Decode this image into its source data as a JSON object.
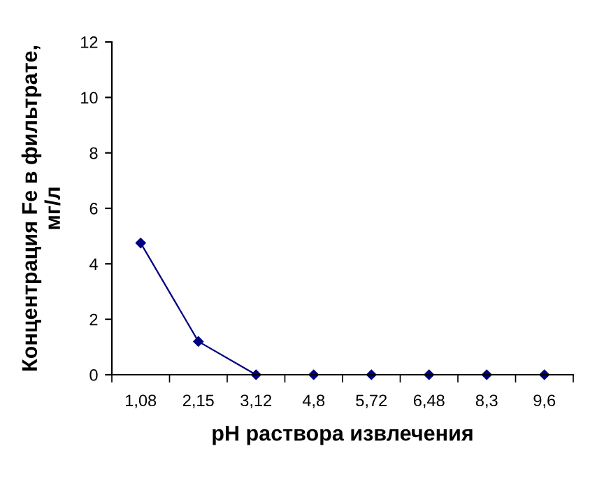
{
  "chart_data": {
    "type": "line",
    "xlabel": "pH раствора извлечения",
    "ylabel": "Концентрация Fe в фильтрате,\nмг/л",
    "categories": [
      "1,08",
      "2,15",
      "3,12",
      "4,8",
      "5,72",
      "6,48",
      "8,3",
      "9,6"
    ],
    "series": [
      {
        "color": "#000080",
        "values": [
          4.75,
          1.2,
          0,
          0,
          0,
          0,
          0,
          0
        ]
      }
    ],
    "ylim": [
      0,
      12
    ],
    "yticks": [
      0,
      2,
      4,
      6,
      8,
      10,
      12
    ],
    "marker": "diamond",
    "line_style": "solid",
    "grid": false,
    "legend": false
  }
}
